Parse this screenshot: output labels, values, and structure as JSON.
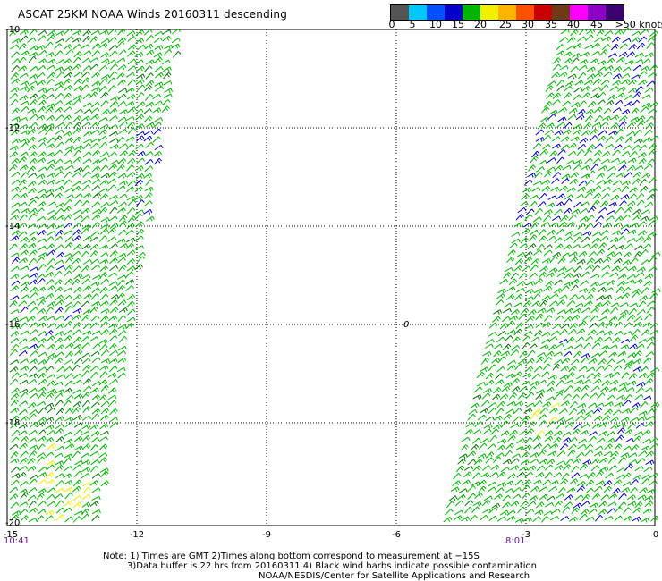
{
  "title": "ASCAT 25KM NOAA Winds 20160311 descending",
  "legend": {
    "labels": [
      "0",
      "5",
      "10",
      "15",
      "20",
      "25",
      "30",
      "35",
      "40",
      "45",
      ">50 knots"
    ],
    "colors": [
      "#555555",
      "#00c8ff",
      "#0050ff",
      "#0000c8",
      "#00b400",
      "#f0f000",
      "#ffb400",
      "#ff5000",
      "#c80000",
      "#6e3c14",
      "#ff00ff",
      "#8c00c8",
      "#3c0070"
    ]
  },
  "axes": {
    "x_ticks": [
      "-15",
      "-12",
      "-9",
      "-6",
      "-3",
      "0"
    ],
    "y_ticks": [
      "-10",
      "-12",
      "-14",
      "-16",
      "-18",
      "-20"
    ]
  },
  "times": {
    "left": "10:41",
    "right": "8:01"
  },
  "notes": {
    "line1": "Note: 1) Times are GMT 2)Times along bottom correspond to measurement at −15S",
    "line2": "3)Data buffer is 22 hrs from 20160311 4) Black wind barbs indicate possible contamination",
    "line3": "NOAA/NESDIS/Center for Satellite Applications and Research"
  },
  "map_marker": "0",
  "wind_colors": {
    "green": "#00b400",
    "dark_green": "#007800",
    "blue": "#0000c8",
    "yellow": "#f0f000"
  }
}
